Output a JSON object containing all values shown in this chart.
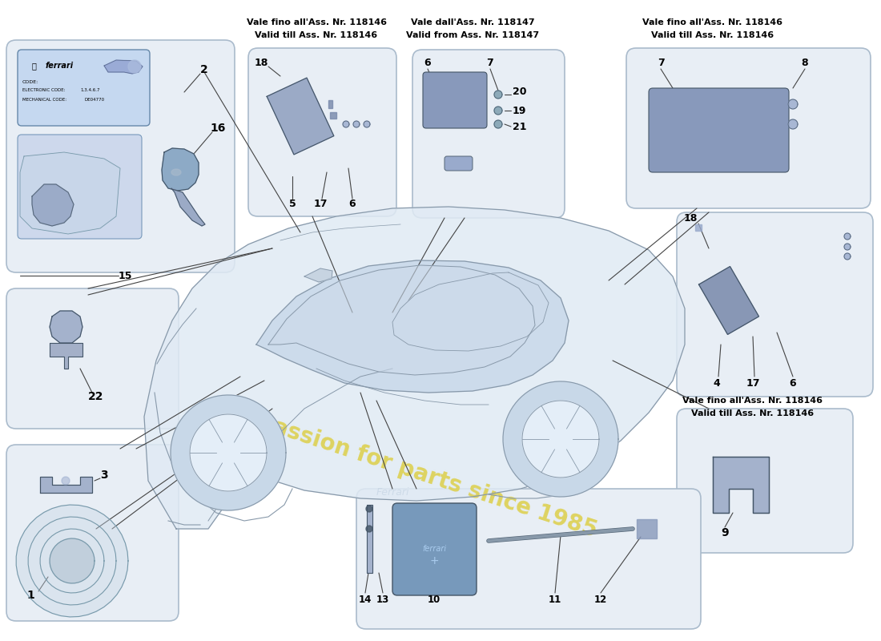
{
  "bg_color": "#ffffff",
  "box_facecolor": "#e8eef5",
  "box_edgecolor": "#aabbcc",
  "line_color": "#444444",
  "car_body_color": "#dde8f0",
  "car_line_color": "#8899aa",
  "watermark_text": "a passion for parts since 1985",
  "watermark_color": "#ddd050",
  "labels": {
    "top_left_header": [
      "Vale fino all'Ass. Nr. 118146",
      "Valid till Ass. Nr. 118146"
    ],
    "top_mid_header": [
      "Vale dall'Ass. Nr. 118147",
      "Valid from Ass. Nr. 118147"
    ],
    "top_right_header": [
      "Vale fino all'Ass. Nr. 118146",
      "Valid till Ass. Nr. 118146"
    ],
    "mid_right_header_bottom": [
      "Vale fino all'Ass. Nr. 118146",
      "Valid till Ass. Nr. 118146"
    ]
  }
}
